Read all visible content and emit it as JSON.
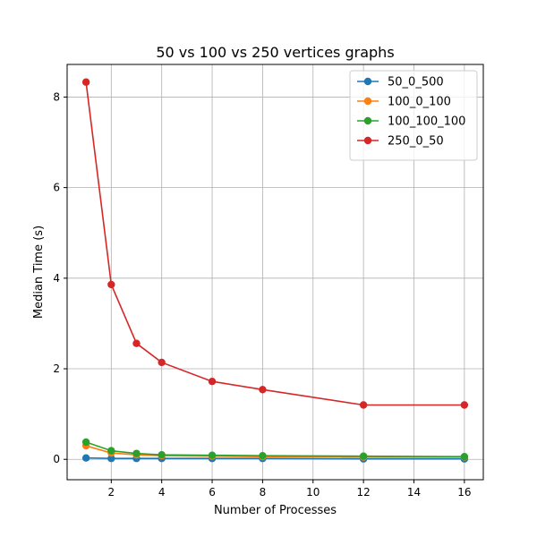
{
  "chart_data": {
    "type": "line",
    "title": "50 vs 100 vs 250 vertices graphs",
    "xlabel": "Number of Processes",
    "ylabel": "Median Time (s)",
    "xlim": [
      0.25,
      16.75
    ],
    "ylim": [
      -0.45,
      8.72
    ],
    "xticks": [
      2,
      4,
      6,
      8,
      10,
      12,
      14,
      16
    ],
    "yticks": [
      0,
      2,
      4,
      6,
      8
    ],
    "grid": true,
    "legend_position": "top-right",
    "x": [
      1,
      2,
      3,
      4,
      6,
      8,
      12,
      16
    ],
    "series": [
      {
        "name": "50_0_500",
        "color": "#1f77b4",
        "values": [
          0.03,
          0.02,
          0.02,
          0.02,
          0.02,
          0.02,
          0.01,
          0.01
        ]
      },
      {
        "name": "100_0_100",
        "color": "#ff7f0e",
        "values": [
          0.3,
          0.14,
          0.1,
          0.08,
          0.07,
          0.06,
          0.05,
          0.05
        ]
      },
      {
        "name": "100_100_100",
        "color": "#2ca02c",
        "values": [
          0.38,
          0.19,
          0.13,
          0.1,
          0.09,
          0.08,
          0.07,
          0.06
        ]
      },
      {
        "name": "250_0_50",
        "color": "#d62728",
        "values": [
          8.33,
          3.86,
          2.56,
          2.14,
          1.72,
          1.54,
          1.2,
          1.2
        ]
      }
    ]
  }
}
